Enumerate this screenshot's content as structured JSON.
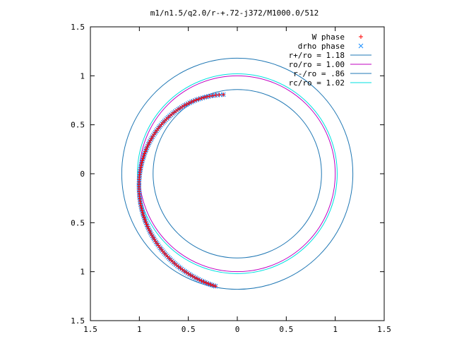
{
  "chart_data": {
    "type": "scatter",
    "title": "m1/n1.5/q2.0/r-+.72-j372/M1000.0/512",
    "xlabel": "",
    "ylabel": "",
    "xlim": [
      -1.5,
      1.5
    ],
    "ylim": [
      -1.5,
      1.5
    ],
    "x_ticks": [
      -1.5,
      -1,
      -0.5,
      0,
      0.5,
      1,
      1.5
    ],
    "x_tick_labels": [
      "1.5",
      "1",
      "0.5",
      "0",
      "0.5",
      "1",
      "1.5"
    ],
    "y_ticks": [
      1.5,
      1,
      0.5,
      0,
      -0.5,
      -1,
      -1.5
    ],
    "y_tick_labels": [
      "1.5",
      "1",
      "0.5",
      "0",
      "0.5",
      "1",
      "1.5"
    ],
    "grid": false,
    "legend_position": "top-right",
    "series": [
      {
        "name": "W phase",
        "kind": "points",
        "marker": "+",
        "color": "#ff0000",
        "spiral": {
          "r_start": 0.82,
          "r_end": 1.17,
          "phase_start_deg": 100,
          "phase_end_deg": 259,
          "points": 110
        }
      },
      {
        "name": "drho phase",
        "kind": "points",
        "marker": "x",
        "color": "#1e90ff",
        "spiral": {
          "r_start": 0.82,
          "r_end": 1.17,
          "phase_start_deg": 100,
          "phase_end_deg": 259,
          "points": 150
        }
      },
      {
        "name": "r+/ro = 1.18",
        "kind": "circle",
        "radius": 1.18,
        "color": "#1f77b4"
      },
      {
        "name": "ro/ro = 1.00",
        "kind": "circle",
        "radius": 1.0,
        "color": "#c000c0"
      },
      {
        "name": "r-/ro = .86",
        "kind": "circle",
        "radius": 0.86,
        "color": "#1f77b4"
      },
      {
        "name": "rc/ro = 1.02",
        "kind": "circle",
        "radius": 1.02,
        "color": "#00e0e0"
      }
    ]
  }
}
